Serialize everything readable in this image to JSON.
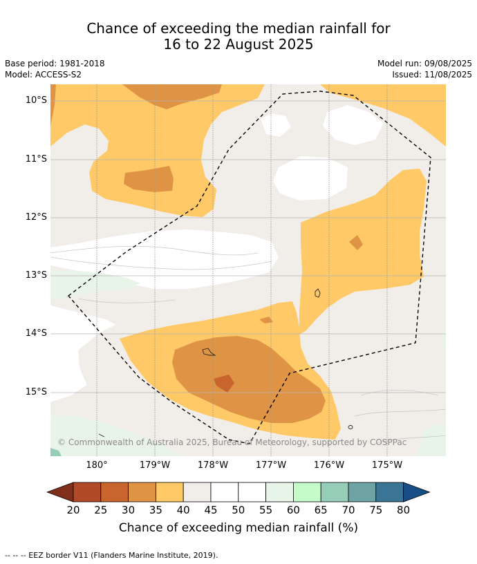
{
  "title_line1": "Chance of exceeding the median rainfall for",
  "title_line2": "16 to 22 August 2025",
  "meta": {
    "base_period": "Base period: 1981-2018",
    "model": "Model: ACCESS-S2",
    "model_run": "Model run: 09/08/2025",
    "issued": "Issued: 11/08/2025"
  },
  "copyright": "© Commonwealth of Australia 2025, Bureau of Meteorology, supported by COSPPac",
  "lat_labels": [
    "10°S",
    "11°S",
    "12°S",
    "13°S",
    "14°S",
    "15°S"
  ],
  "lon_labels": [
    "180°",
    "179°W",
    "178°W",
    "177°W",
    "176°W",
    "175°W"
  ],
  "colorbar": {
    "ticks": [
      "20",
      "25",
      "30",
      "35",
      "40",
      "45",
      "50",
      "55",
      "60",
      "65",
      "70",
      "75",
      "80"
    ],
    "colors": [
      "#7f2f1a",
      "#b24a27",
      "#c9642e",
      "#df9445",
      "#fec966",
      "#f1ede8",
      "#ffffff",
      "#ffffff",
      "#e9f4e8",
      "#c5fbcb",
      "#96cdb8",
      "#6da3a3",
      "#3b7596",
      "#174e86"
    ],
    "label": "Chance of exceeding median rainfall (%)"
  },
  "footnote": "--  --  -- EEZ border V11 (Flanders Marine Institute, 2019).",
  "map_colors": {
    "c30": "#df9445",
    "c35": "#fec966",
    "c40": "#f1ede8",
    "c55": "#e9f4e8",
    "c60": "#c5fbcb",
    "c65": "#96cdb8"
  }
}
